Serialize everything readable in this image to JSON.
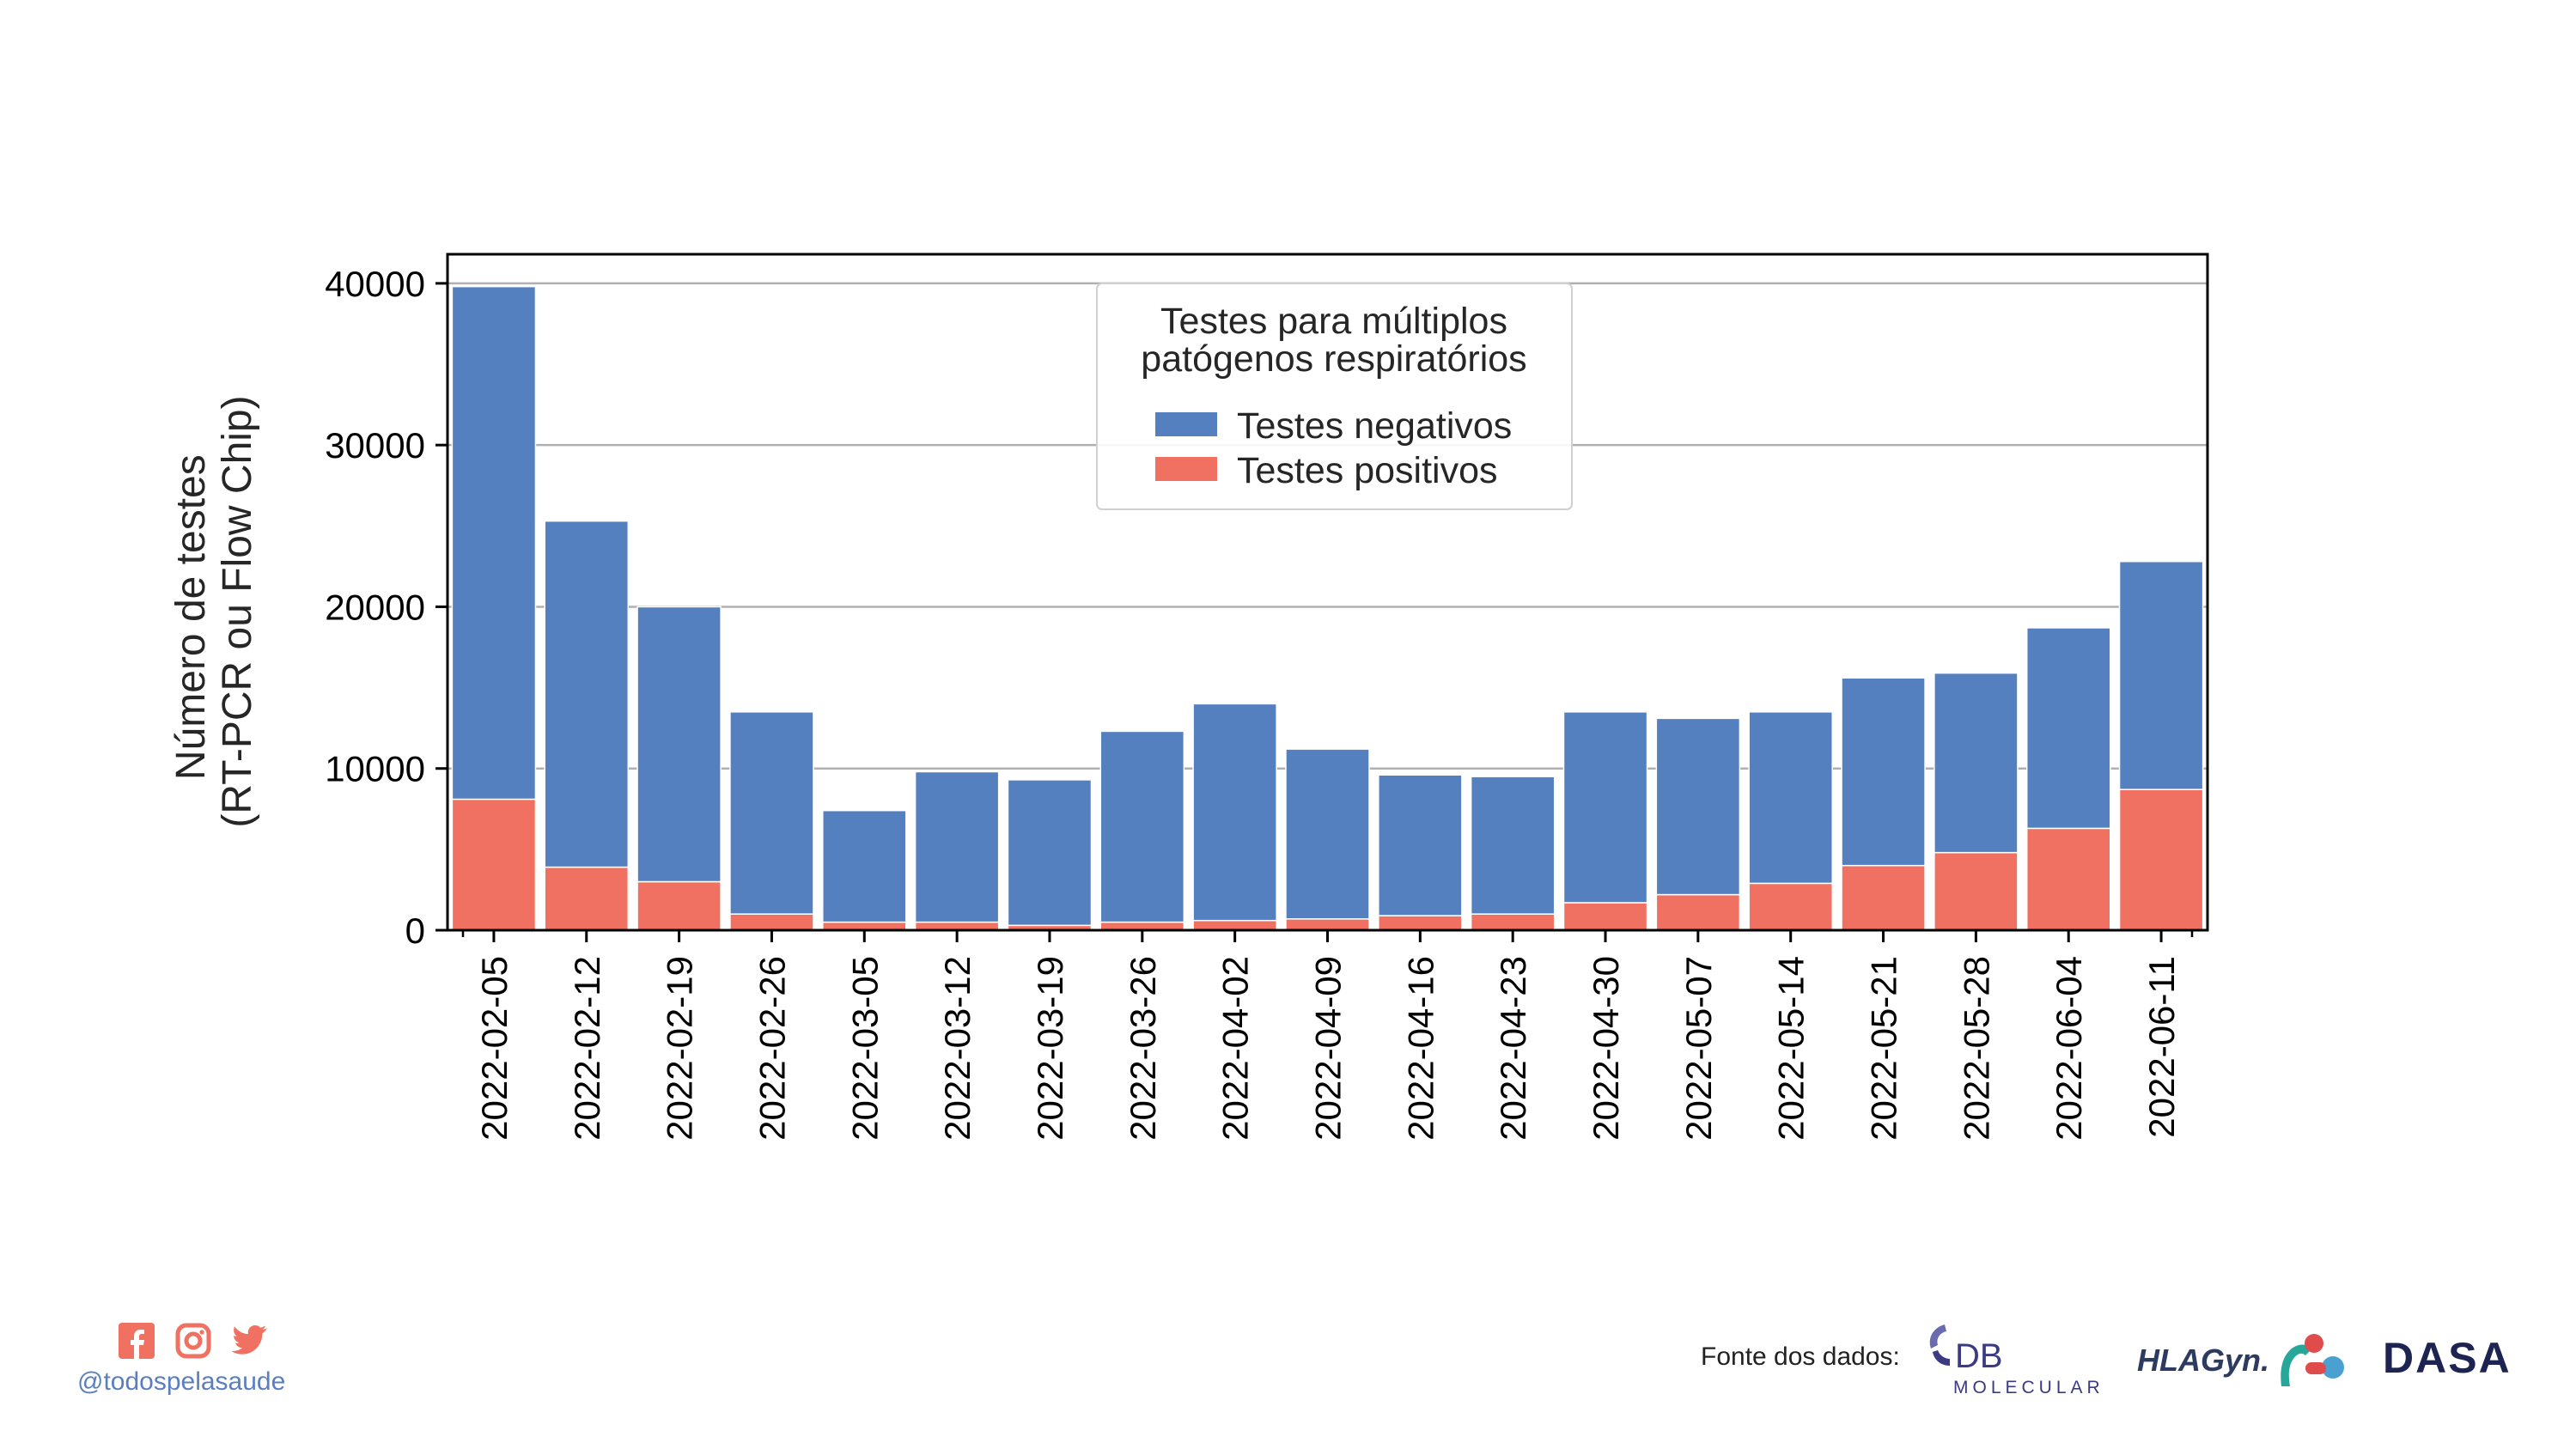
{
  "chart_data": {
    "type": "bar",
    "stacked": true,
    "categories": [
      "2022-02-05",
      "2022-02-12",
      "2022-02-19",
      "2022-02-26",
      "2022-03-05",
      "2022-03-12",
      "2022-03-19",
      "2022-03-26",
      "2022-04-02",
      "2022-04-09",
      "2022-04-16",
      "2022-04-23",
      "2022-04-30",
      "2022-05-07",
      "2022-05-14",
      "2022-05-21",
      "2022-05-28",
      "2022-06-04",
      "2022-06-11"
    ],
    "series": [
      {
        "name": "Testes positivos",
        "color": "#f07062",
        "values": [
          8100,
          3900,
          3000,
          1000,
          500,
          500,
          300,
          500,
          600,
          700,
          900,
          1000,
          1700,
          2200,
          2900,
          4000,
          4800,
          6300,
          8700
        ]
      },
      {
        "name": "Testes negativos",
        "color": "#5580c0",
        "values": [
          31700,
          21400,
          17000,
          12500,
          6900,
          9300,
          9000,
          11800,
          13400,
          10500,
          8700,
          8500,
          11800,
          10900,
          10600,
          11600,
          11100,
          12400,
          14100
        ]
      }
    ],
    "ylabel": [
      "Número de testes",
      "(RT-PCR ou Flow Chip)"
    ],
    "yticks": [
      0,
      10000,
      20000,
      30000,
      40000
    ],
    "ylim": [
      0,
      40000
    ],
    "grid": "horizontal",
    "legend": {
      "title": [
        "Testes para múltiplos",
        "patógenos respiratórios"
      ],
      "placement": "top-center",
      "entries": [
        "Testes negativos",
        "Testes positivos"
      ]
    }
  },
  "footer": {
    "social_icons": [
      "facebook-icon",
      "instagram-icon",
      "twitter-icon"
    ],
    "handle": "@todospelasaude",
    "source_label": "Fonte dos dados:",
    "logos": [
      {
        "name": "db-molecular-logo",
        "text": "DB",
        "subtext": "MOLECULAR"
      },
      {
        "name": "hlagyn-logo",
        "text": "HLAGyn."
      },
      {
        "name": "dasa-logo",
        "text": "DASA"
      }
    ],
    "accent_color": "#f07062",
    "handle_color": "#5b7fbe"
  }
}
